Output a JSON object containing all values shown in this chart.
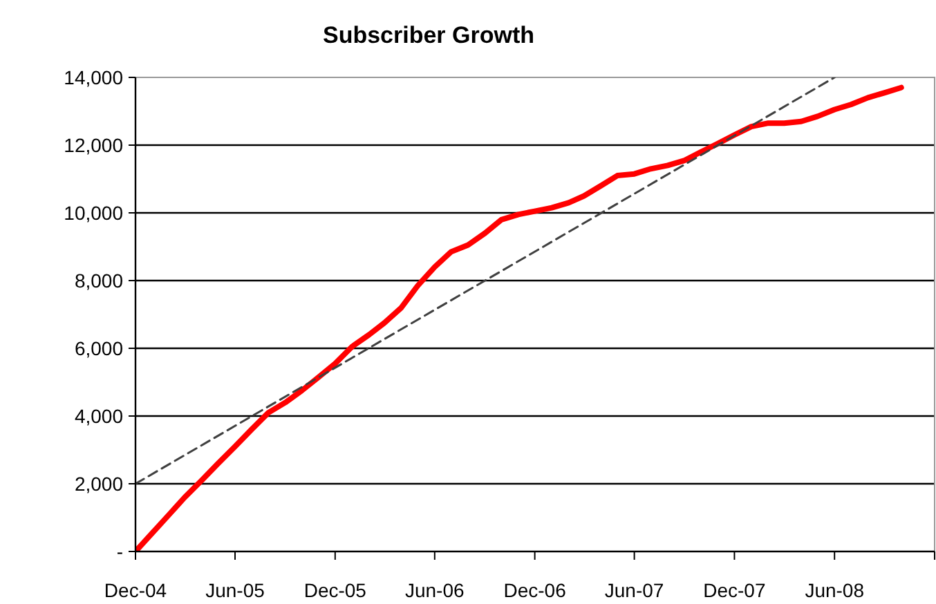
{
  "chart_data": {
    "type": "line",
    "title": "Subscriber Growth",
    "x": [
      "2004-12",
      "2005-01",
      "2005-02",
      "2005-03",
      "2005-04",
      "2005-05",
      "2005-06",
      "2005-07",
      "2005-08",
      "2005-09",
      "2005-10",
      "2005-11",
      "2005-12",
      "2006-01",
      "2006-02",
      "2006-03",
      "2006-04",
      "2006-05",
      "2006-06",
      "2006-07",
      "2006-08",
      "2006-09",
      "2006-10",
      "2006-11",
      "2006-12",
      "2007-01",
      "2007-02",
      "2007-03",
      "2007-04",
      "2007-05",
      "2007-06",
      "2007-07",
      "2007-08",
      "2007-09",
      "2007-10",
      "2007-11",
      "2007-12",
      "2008-01",
      "2008-02",
      "2008-03",
      "2008-04",
      "2008-05",
      "2008-06",
      "2008-07",
      "2008-08",
      "2008-09",
      "2008-10"
    ],
    "series": [
      {
        "color": "#ff0000",
        "line_style": "solid",
        "values": [
          0,
          550,
          1100,
          1600,
          2100,
          2600,
          3100,
          3600,
          4100,
          4400,
          4750,
          5150,
          5550,
          6050,
          6400,
          6750,
          7200,
          7850,
          8400,
          8850,
          9050,
          9400,
          9800,
          9950,
          10050,
          10150,
          10300,
          10500,
          10800,
          11100,
          11150,
          11300,
          11400,
          11550,
          11800,
          12050,
          12300,
          12550,
          12650,
          12650,
          12700,
          12850,
          13050,
          13200,
          13400,
          13550,
          13700
        ]
      },
      {
        "color": "#404040",
        "line_style": "dashed",
        "x": [
          "2004-12",
          "2008-06"
        ],
        "values": [
          2000,
          14000
        ]
      }
    ],
    "xlim": [
      "2004-12",
      "2008-12"
    ],
    "xticks": [
      {
        "value": "2004-12",
        "label": "Dec-04"
      },
      {
        "value": "2005-06",
        "label": "Jun-05"
      },
      {
        "value": "2005-12",
        "label": "Dec-05"
      },
      {
        "value": "2006-06",
        "label": "Jun-06"
      },
      {
        "value": "2006-12",
        "label": "Dec-06"
      },
      {
        "value": "2007-06",
        "label": "Jun-07"
      },
      {
        "value": "2007-12",
        "label": "Dec-07"
      },
      {
        "value": "2008-06",
        "label": "Jun-08"
      },
      {
        "value": "2008-12",
        "label": null
      }
    ],
    "ylim": [
      0,
      14000
    ],
    "yticks": [
      {
        "value": 0,
        "label": "-"
      },
      {
        "value": 2000,
        "label": "2,000"
      },
      {
        "value": 4000,
        "label": "4,000"
      },
      {
        "value": 6000,
        "label": "6,000"
      },
      {
        "value": 8000,
        "label": "8,000"
      },
      {
        "value": 10000,
        "label": "10,000"
      },
      {
        "value": 12000,
        "label": "12,000"
      },
      {
        "value": 14000,
        "label": "14,000"
      }
    ],
    "grid": "y",
    "marker": "none"
  }
}
